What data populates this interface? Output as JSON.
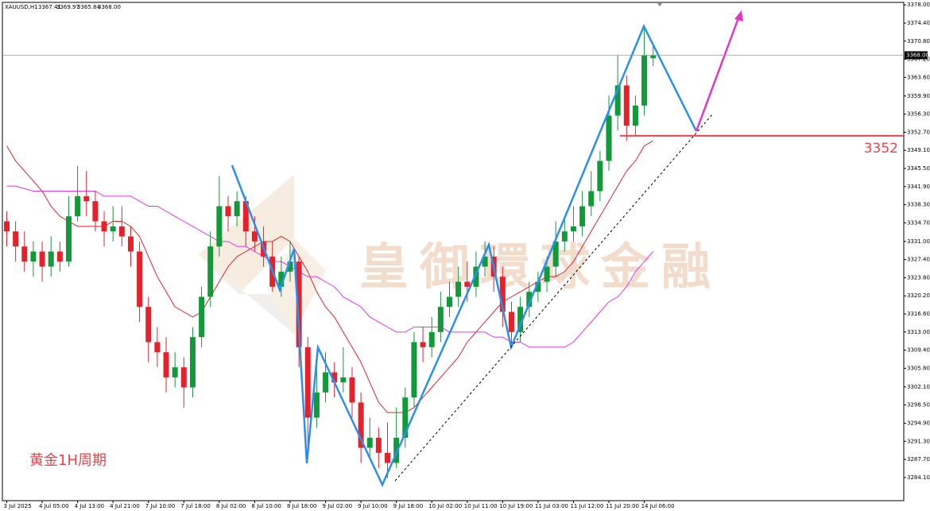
{
  "header": {
    "symbol": "XAUUSD,H1",
    "ohlc": [
      "3367.41",
      "3369.97",
      "3365.84",
      "3368.00"
    ]
  },
  "watermark": "皇御環球金融",
  "note": "黄金1H周期",
  "chart_data": {
    "type": "candlestick",
    "categories": [
      "3 Jul 2025",
      null,
      null,
      null,
      "4 Jul 05:00",
      null,
      null,
      null,
      "4 Jul 13:00",
      null,
      null,
      null,
      "4 Jul 21:00",
      null,
      null,
      null,
      "7 Jul 10:00",
      null,
      null,
      null,
      "7 Jul 18:00",
      null,
      null,
      null,
      "8 Jul 02:00",
      null,
      null,
      null,
      "8 Jul 10:00",
      null,
      null,
      null,
      "8 Jul 18:00",
      null,
      null,
      null,
      "9 Jul 02:00",
      null,
      null,
      null,
      "9 Jul 10:00",
      null,
      null,
      null,
      "9 Jul 18:00",
      null,
      null,
      null,
      "10 Jul 02:00",
      null,
      null,
      null,
      "10 Jul 11:00",
      null,
      null,
      null,
      "10 Jul 19:00",
      null,
      null,
      null,
      "11 Jul 03:00",
      null,
      null,
      null,
      "11 Jul 12:00",
      null,
      null,
      null,
      "11 Jul 20:00",
      null,
      null,
      null,
      "14 Jul 06:00",
      null
    ],
    "open": [
      3335,
      3333,
      3330,
      3327,
      3329,
      3326,
      3329,
      3327,
      3336,
      3340,
      3339,
      3335,
      3333,
      3334,
      3332,
      3329,
      3318,
      3311,
      3309,
      3304,
      3306,
      3302,
      3312,
      3320,
      3330,
      3338,
      3336,
      3339,
      3333,
      3331,
      3328,
      3322,
      3325,
      3327,
      3310,
      3296,
      3301,
      3305,
      3303,
      3304,
      3299,
      3290,
      3292,
      3289,
      3287,
      3292,
      3300,
      3311,
      3310,
      3313,
      3318,
      3320,
      3323,
      3322,
      3326,
      3328,
      3324,
      3317,
      3313,
      3318,
      3321,
      3323,
      3326,
      3331,
      3333,
      3334,
      3338,
      3341,
      3347,
      3356,
      3362,
      3354,
      3358,
      3367.41
    ],
    "high": [
      3337,
      3335,
      3333,
      3331,
      3331,
      3332,
      3331,
      3340,
      3346,
      3345,
      3341,
      3337,
      3338,
      3338,
      3334,
      3331,
      3320,
      3314,
      3312,
      3309,
      3308,
      3314,
      3322,
      3333,
      3344,
      3340,
      3341,
      3340,
      3336,
      3334,
      3331,
      3328,
      3331,
      3328,
      3312,
      3306,
      3309,
      3307,
      3310,
      3306,
      3301,
      3296,
      3294,
      3295,
      3298,
      3302,
      3313,
      3314,
      3316,
      3321,
      3323,
      3326,
      3327,
      3329,
      3331,
      3330,
      3326,
      3319,
      3320,
      3323,
      3325,
      3328,
      3335,
      3336,
      3338,
      3341,
      3345,
      3349,
      3360,
      3368,
      3364,
      3360,
      3374,
      3369.97
    ],
    "low": [
      3330,
      3327,
      3325,
      3324,
      3323,
      3324,
      3325,
      3326,
      3335,
      3336,
      3333,
      3330,
      3331,
      3330,
      3326,
      3315,
      3307,
      3306,
      3301,
      3302,
      3298,
      3300,
      3310,
      3318,
      3328,
      3333,
      3334,
      3330,
      3329,
      3326,
      3321,
      3320,
      3323,
      3306,
      3288,
      3294,
      3299,
      3300,
      3301,
      3296,
      3287,
      3288,
      3286,
      3284,
      3286,
      3290,
      3298,
      3307,
      3308,
      3311,
      3316,
      3318,
      3319,
      3320,
      3324,
      3321,
      3314,
      3310,
      3311,
      3316,
      3319,
      3321,
      3324,
      3329,
      3331,
      3332,
      3336,
      3339,
      3345,
      3353,
      3351,
      3352,
      3356,
      3365.84
    ],
    "close": [
      3333,
      3330,
      3327,
      3329,
      3326,
      3329,
      3327,
      3336,
      3340,
      3339,
      3335,
      3333,
      3334,
      3332,
      3329,
      3318,
      3311,
      3309,
      3304,
      3306,
      3302,
      3312,
      3320,
      3330,
      3338,
      3336,
      3339,
      3333,
      3331,
      3328,
      3322,
      3325,
      3327,
      3310,
      3296,
      3301,
      3305,
      3303,
      3304,
      3299,
      3290,
      3292,
      3289,
      3287,
      3292,
      3300,
      3311,
      3310,
      3313,
      3318,
      3320,
      3323,
      3322,
      3326,
      3328,
      3324,
      3317,
      3313,
      3318,
      3321,
      3323,
      3326,
      3331,
      3333,
      3334,
      3338,
      3341,
      3347,
      3356,
      3362,
      3354,
      3358,
      3368,
      3368
    ],
    "up_color": "#12993a",
    "down_color": "#e3222b",
    "series": [
      {
        "color": "#e3222b",
        "values": [
          3350,
          3347,
          3345,
          3343,
          3341,
          3338,
          3336,
          3335,
          3334,
          3334,
          3334,
          3334,
          3335,
          3335,
          3334,
          3332,
          3328,
          3324,
          3321,
          3318,
          3317,
          3316,
          3317,
          3320,
          3323,
          3326,
          3328,
          3329,
          3330,
          3331,
          3331,
          3332,
          3331,
          3328,
          3325,
          3321,
          3318,
          3316,
          3313,
          3310,
          3307,
          3303,
          3299,
          3297,
          3297,
          3297,
          3298,
          3300,
          3302,
          3304,
          3306,
          3308,
          3311,
          3313,
          3315,
          3317,
          3319,
          3320,
          3321,
          3322,
          3323,
          3324,
          3324,
          3325,
          3327,
          3330,
          3333,
          3336,
          3339,
          3342,
          3345,
          3347,
          3350,
          3351
        ]
      },
      {
        "color": "#e535e5",
        "values": [
          3342,
          3342,
          3341.5,
          3341,
          3341,
          3341,
          3341,
          3341,
          3341,
          3341,
          3341,
          3340,
          3340,
          3340,
          3340,
          3339,
          3338,
          3338,
          3337,
          3336,
          3335,
          3334,
          3333,
          3332,
          3331,
          3331,
          3330,
          3330,
          3329,
          3328,
          3327,
          3327,
          3326,
          3325,
          3324,
          3324,
          3323,
          3322,
          3320,
          3319,
          3318,
          3316,
          3315,
          3314,
          3313,
          3313,
          3314,
          3314,
          3314,
          3314,
          3313,
          3313,
          3313,
          3313,
          3313,
          3312,
          3312,
          3311,
          3311,
          3310,
          3310,
          3310,
          3310,
          3310,
          3311,
          3313,
          3315,
          3317,
          3319,
          3320,
          3322,
          3325,
          3327,
          3329
        ]
      }
    ],
    "ylim": [
      3279.5,
      3378.5
    ],
    "yticks": [
      {
        "value": 3378,
        "label": "3378.00"
      },
      {
        "value": 3374.4,
        "label": "3374.40"
      },
      {
        "value": 3370.8,
        "label": "3370.80"
      },
      {
        "value": 3367.2,
        "label": "3367.20"
      },
      {
        "value": 3363.6,
        "label": "3363.60"
      },
      {
        "value": 3359.9,
        "label": "3359.90"
      },
      {
        "value": 3356.3,
        "label": "3356.30"
      },
      {
        "value": 3352.7,
        "label": "3352.70"
      },
      {
        "value": 3349.1,
        "label": "3349.10"
      },
      {
        "value": 3345.5,
        "label": "3345.50"
      },
      {
        "value": 3341.9,
        "label": "3341.90"
      },
      {
        "value": 3338.3,
        "label": "3338.30"
      },
      {
        "value": 3334.7,
        "label": "3334.70"
      },
      {
        "value": 3331,
        "label": "3331.00"
      },
      {
        "value": 3327.4,
        "label": "3327.40"
      },
      {
        "value": 3323.8,
        "label": "3323.80"
      },
      {
        "value": 3320.2,
        "label": "3320.20"
      },
      {
        "value": 3316.6,
        "label": "3316.60"
      },
      {
        "value": 3313,
        "label": "3313.00"
      },
      {
        "value": 3309.4,
        "label": "3309.40"
      },
      {
        "value": 3305.8,
        "label": "3305.80"
      },
      {
        "value": 3302.1,
        "label": "3302.10"
      },
      {
        "value": 3298.5,
        "label": "3298.50"
      },
      {
        "value": 3294.9,
        "label": "3294.90"
      },
      {
        "value": 3291.3,
        "label": "3291.30"
      },
      {
        "value": 3287.7,
        "label": "3287.70"
      },
      {
        "value": 3284.1,
        "label": "3284.10"
      }
    ],
    "current_price": {
      "value": 3368,
      "label": "3368.00"
    },
    "level": {
      "value": 3352,
      "label": 3352,
      "color": "#f0444c"
    }
  }
}
